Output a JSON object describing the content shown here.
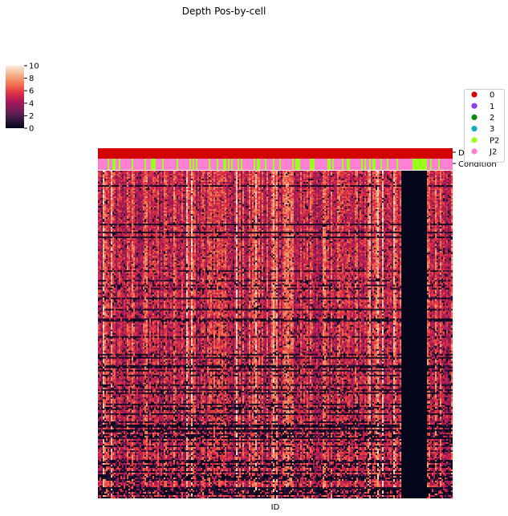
{
  "chart_data": {
    "type": "heatmap",
    "title": "Depth Pos-by-cell",
    "xlabel": "ID",
    "ylabel": "",
    "colorbar": {
      "ticks": [
        "0",
        "2",
        "4",
        "6",
        "8",
        "10"
      ],
      "range": [
        0,
        10
      ],
      "colormap": [
        "#03051a",
        "#36193e",
        "#701f57",
        "#ad1759",
        "#e13342",
        "#f37651",
        "#f6b48f",
        "#faebdd"
      ]
    },
    "annotation_tracks": [
      {
        "label": "Donor",
        "dominant_value": "0"
      },
      {
        "label": "Condition",
        "values_present": [
          "P2",
          "J2"
        ]
      }
    ],
    "legend": {
      "placement": "right",
      "entries": [
        {
          "label": "0",
          "color": "#d40000"
        },
        {
          "label": "1",
          "color": "#8a3ff0"
        },
        {
          "label": "2",
          "color": "#0f8a0f"
        },
        {
          "label": "3",
          "color": "#10aebb"
        },
        {
          "label": "P2",
          "color": "#9aff1f"
        },
        {
          "label": "J2",
          "color": "#ff7fd0"
        }
      ]
    },
    "notes": {
      "zero_depth_band": "one contiguous block of columns near the right edge with value 0 across all rows",
      "condition_p2_block": "the same block of columns is labelled P2 in the Condition track"
    }
  }
}
